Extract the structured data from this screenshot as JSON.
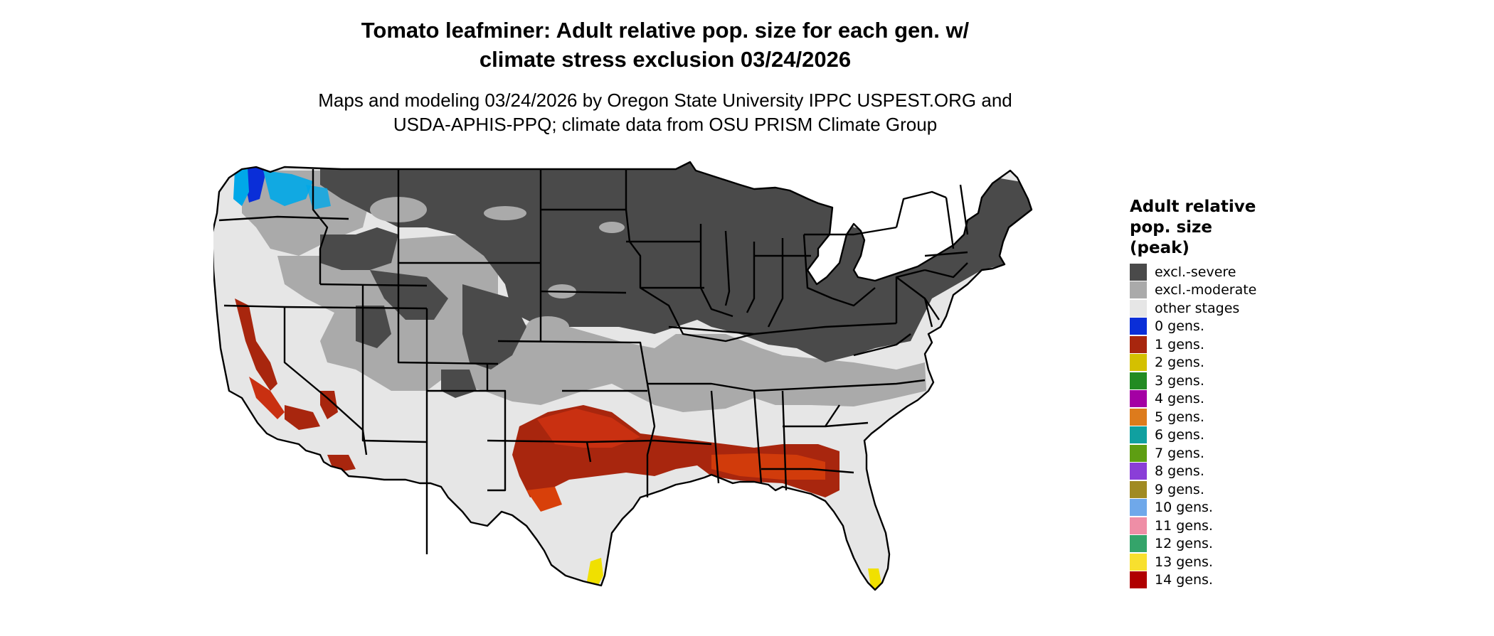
{
  "title_lines": [
    "Tomato leafminer: Adult relative pop. size for each gen. w/",
    "climate stress exclusion 03/24/2026"
  ],
  "subtitle_lines": [
    "Maps and modeling 03/24/2026 by Oregon State University IPPC USPEST.ORG and",
    "USDA-APHIS-PPQ; climate data from OSU PRISM Climate Group"
  ],
  "legend": {
    "title_lines": [
      "Adult relative",
      "pop. size",
      "(peak)"
    ],
    "items": [
      {
        "label": "excl.-severe",
        "color": "#4a4a4a"
      },
      {
        "label": "excl.-moderate",
        "color": "#aaaaaa"
      },
      {
        "label": "other stages",
        "color": "#e6e6e6"
      },
      {
        "label": "0 gens.",
        "color": "#0a2ed8"
      },
      {
        "label": "1 gens.",
        "color": "#a8260e"
      },
      {
        "label": "2 gens.",
        "color": "#d4c000"
      },
      {
        "label": "3 gens.",
        "color": "#228b22"
      },
      {
        "label": "4 gens.",
        "color": "#a400a4"
      },
      {
        "label": "5 gens.",
        "color": "#dd7b1c"
      },
      {
        "label": "6 gens.",
        "color": "#10a0a0"
      },
      {
        "label": "7 gens.",
        "color": "#5e9e12"
      },
      {
        "label": "8 gens.",
        "color": "#8a3ed8"
      },
      {
        "label": "9 gens.",
        "color": "#a08a22"
      },
      {
        "label": "10 gens.",
        "color": "#6fa8ea"
      },
      {
        "label": "11 gens.",
        "color": "#ef8ea6"
      },
      {
        "label": "12 gens.",
        "color": "#34a46a"
      },
      {
        "label": "13 gens.",
        "color": "#f8e02e"
      },
      {
        "label": "14 gens.",
        "color": "#b00000"
      }
    ]
  },
  "map": {
    "regions": [
      {
        "name": "west-coast-interior",
        "category": "other stages"
      },
      {
        "name": "northwest-exclusion",
        "category": "excl.-moderate"
      },
      {
        "name": "great-basin",
        "category": "excl.-moderate"
      },
      {
        "name": "southern-plains-band",
        "category": "excl.-moderate"
      },
      {
        "name": "northern-tier",
        "category": "excl.-severe"
      },
      {
        "name": "rockies",
        "category": "excl.-severe"
      },
      {
        "name": "washington-cascades",
        "category": "0 gens."
      },
      {
        "name": "gulf-coast-band",
        "category": "1 gens."
      },
      {
        "name": "california-valleys",
        "category": "1 gens."
      },
      {
        "name": "south-texas-tip",
        "category": "2 gens."
      },
      {
        "name": "south-florida-tip",
        "category": "2 gens."
      }
    ]
  }
}
